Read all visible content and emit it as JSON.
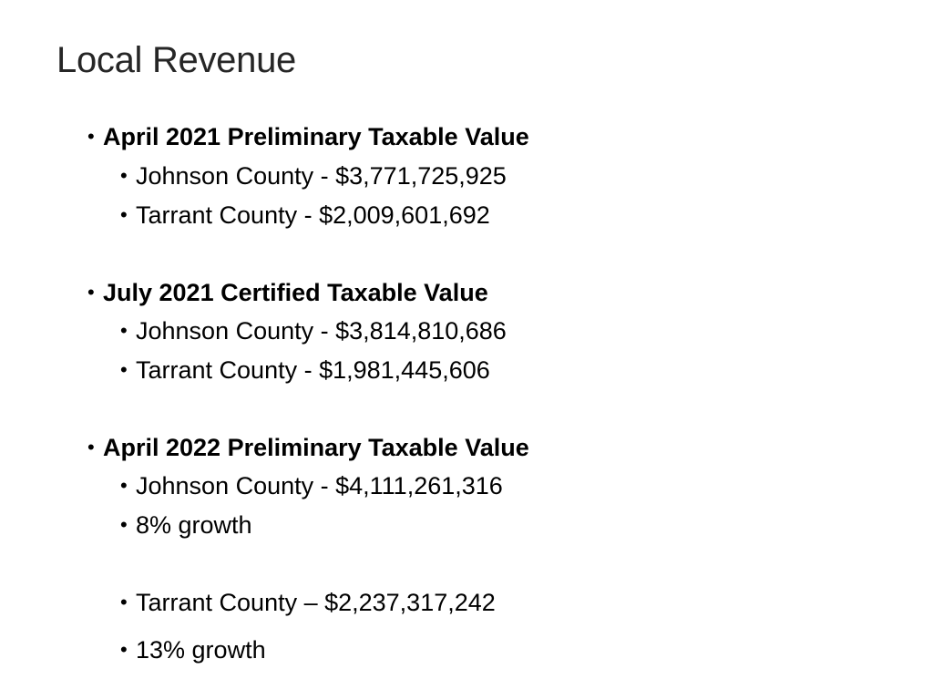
{
  "slide": {
    "title": "Local Revenue",
    "bullet_char": "•",
    "sections": [
      {
        "heading": "April 2021 Preliminary Taxable Value",
        "items": [
          "Johnson County - $3,771,725,925",
          "Tarrant County - $2,009,601,692"
        ]
      },
      {
        "heading": "July 2021 Certified Taxable Value",
        "items": [
          "Johnson County - $3,814,810,686",
          "Tarrant County - $1,981,445,606"
        ]
      },
      {
        "heading": "April 2022 Preliminary Taxable Value",
        "items": [
          "Johnson County - $4,111,261,316",
          "8% growth",
          "Tarrant County – $2,237,317,242",
          "13% growth"
        ]
      }
    ]
  }
}
